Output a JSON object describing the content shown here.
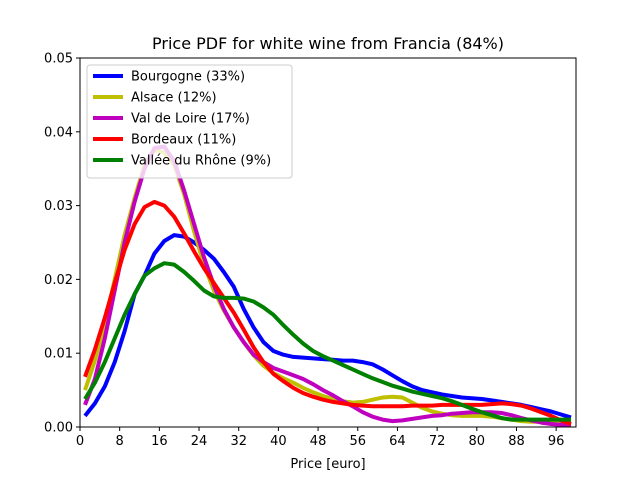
{
  "chart_data": {
    "type": "line",
    "title": "Price PDF for white wine from Francia (84%)",
    "xlabel": "Price [euro]",
    "ylabel": "",
    "xlim": [
      0,
      100
    ],
    "ylim": [
      0,
      0.05
    ],
    "xticks": [
      "0",
      "8",
      "16",
      "24",
      "32",
      "40",
      "48",
      "56",
      "64",
      "72",
      "80",
      "88",
      "96"
    ],
    "yticks": [
      "0.00",
      "0.01",
      "0.02",
      "0.03",
      "0.04",
      "0.05"
    ],
    "grid": false,
    "legend_position": "top-left",
    "series": [
      {
        "name": "Bourgogne (33%)",
        "color": "#0000ff",
        "x": [
          1,
          3,
          5,
          7,
          9,
          11,
          13,
          15,
          17,
          19,
          21,
          23,
          25,
          27,
          29,
          31,
          33,
          35,
          37,
          39,
          41,
          43,
          45,
          47,
          49,
          51,
          53,
          55,
          57,
          59,
          61,
          63,
          65,
          67,
          69,
          71,
          73,
          75,
          77,
          79,
          81,
          83,
          85,
          87,
          89,
          91,
          93,
          95,
          97,
          99
        ],
        "y": [
          0.0015,
          0.0032,
          0.0055,
          0.0088,
          0.013,
          0.018,
          0.0205,
          0.0235,
          0.0252,
          0.026,
          0.0258,
          0.025,
          0.024,
          0.0228,
          0.021,
          0.019,
          0.016,
          0.0135,
          0.0115,
          0.0103,
          0.0098,
          0.0095,
          0.0094,
          0.0093,
          0.0092,
          0.0091,
          0.009,
          0.009,
          0.0088,
          0.0085,
          0.0078,
          0.007,
          0.0062,
          0.0055,
          0.005,
          0.0047,
          0.0044,
          0.0042,
          0.004,
          0.0039,
          0.0038,
          0.0036,
          0.0034,
          0.0032,
          0.003,
          0.0027,
          0.0024,
          0.0021,
          0.0017,
          0.0013
        ]
      },
      {
        "name": "Alsace (12%)",
        "color": "#bfbf00",
        "x": [
          1,
          3,
          5,
          7,
          9,
          11,
          13,
          15,
          17,
          19,
          21,
          23,
          25,
          27,
          29,
          31,
          33,
          35,
          37,
          39,
          41,
          43,
          45,
          47,
          49,
          51,
          53,
          55,
          57,
          59,
          61,
          63,
          65,
          67,
          69,
          71,
          73,
          75,
          77,
          79,
          81,
          83,
          85,
          87,
          89,
          91,
          93,
          95,
          97,
          99
        ],
        "y": [
          0.005,
          0.009,
          0.014,
          0.02,
          0.026,
          0.031,
          0.0355,
          0.0375,
          0.0372,
          0.0355,
          0.0315,
          0.0265,
          0.022,
          0.0185,
          0.0158,
          0.0135,
          0.0115,
          0.0097,
          0.0083,
          0.0073,
          0.0066,
          0.006,
          0.0053,
          0.0047,
          0.0042,
          0.0038,
          0.0035,
          0.0033,
          0.0034,
          0.0037,
          0.004,
          0.0041,
          0.004,
          0.0033,
          0.0026,
          0.0021,
          0.0018,
          0.0016,
          0.0015,
          0.0015,
          0.0015,
          0.0014,
          0.0012,
          0.001,
          0.0008,
          0.0007,
          0.0007,
          0.0007,
          0.0007,
          0.0007
        ]
      },
      {
        "name": "Val de Loire (17%)",
        "color": "#bf00bf",
        "x": [
          1,
          3,
          5,
          7,
          9,
          11,
          13,
          15,
          17,
          19,
          21,
          23,
          25,
          27,
          29,
          31,
          33,
          35,
          37,
          39,
          41,
          43,
          45,
          47,
          49,
          51,
          53,
          55,
          57,
          59,
          61,
          63,
          65,
          67,
          69,
          71,
          73,
          75,
          77,
          79,
          81,
          83,
          85,
          87,
          89,
          91,
          93,
          95,
          97,
          99
        ],
        "y": [
          0.003,
          0.0065,
          0.012,
          0.0185,
          0.025,
          0.0305,
          0.035,
          0.0378,
          0.038,
          0.036,
          0.032,
          0.0275,
          0.023,
          0.0192,
          0.016,
          0.0135,
          0.0115,
          0.0098,
          0.0088,
          0.008,
          0.0075,
          0.007,
          0.0065,
          0.0058,
          0.005,
          0.0043,
          0.0035,
          0.0028,
          0.002,
          0.0014,
          0.001,
          0.0008,
          0.0009,
          0.0011,
          0.0013,
          0.0015,
          0.0016,
          0.0018,
          0.0019,
          0.002,
          0.002,
          0.002,
          0.0019,
          0.0016,
          0.0012,
          0.0009,
          0.0006,
          0.0004,
          0.0003,
          0.0002
        ]
      },
      {
        "name": "Bordeaux (11%)",
        "color": "#ff0000",
        "x": [
          1,
          3,
          5,
          7,
          9,
          11,
          13,
          15,
          17,
          19,
          21,
          23,
          25,
          27,
          29,
          31,
          33,
          35,
          37,
          39,
          41,
          43,
          45,
          47,
          49,
          51,
          53,
          55,
          57,
          59,
          61,
          63,
          65,
          67,
          69,
          71,
          73,
          75,
          77,
          79,
          81,
          83,
          85,
          87,
          89,
          91,
          93,
          95,
          97,
          99
        ],
        "y": [
          0.0068,
          0.0105,
          0.0148,
          0.0195,
          0.024,
          0.0275,
          0.0298,
          0.0305,
          0.03,
          0.0285,
          0.0262,
          0.0238,
          0.0215,
          0.0195,
          0.0175,
          0.0155,
          0.0132,
          0.0108,
          0.0088,
          0.0072,
          0.0062,
          0.0053,
          0.0046,
          0.0041,
          0.0037,
          0.0034,
          0.0032,
          0.003,
          0.0029,
          0.0028,
          0.0028,
          0.0028,
          0.0028,
          0.0029,
          0.0029,
          0.0029,
          0.003,
          0.003,
          0.003,
          0.003,
          0.003,
          0.0031,
          0.0032,
          0.0031,
          0.0029,
          0.0025,
          0.002,
          0.0015,
          0.0009,
          0.0004
        ]
      },
      {
        "name": "Vallée du Rhône (9%)",
        "color": "#008000",
        "x": [
          1,
          3,
          5,
          7,
          9,
          11,
          13,
          15,
          17,
          19,
          21,
          23,
          25,
          27,
          29,
          31,
          33,
          35,
          37,
          39,
          41,
          43,
          45,
          47,
          49,
          51,
          53,
          55,
          57,
          59,
          61,
          63,
          65,
          67,
          69,
          71,
          73,
          75,
          77,
          79,
          81,
          83,
          85,
          87,
          89,
          91,
          93,
          95,
          97,
          99
        ],
        "y": [
          0.0038,
          0.006,
          0.0088,
          0.012,
          0.0152,
          0.018,
          0.0205,
          0.0215,
          0.0222,
          0.022,
          0.021,
          0.0198,
          0.0185,
          0.0177,
          0.0175,
          0.0175,
          0.0174,
          0.017,
          0.0162,
          0.0152,
          0.0138,
          0.0125,
          0.0113,
          0.0103,
          0.0096,
          0.009,
          0.0084,
          0.0078,
          0.0072,
          0.0066,
          0.0061,
          0.0056,
          0.0052,
          0.0048,
          0.0045,
          0.0042,
          0.0039,
          0.0035,
          0.003,
          0.0025,
          0.002,
          0.0016,
          0.0012,
          0.001,
          0.001,
          0.001,
          0.001,
          0.001,
          0.001,
          0.001
        ]
      }
    ]
  }
}
